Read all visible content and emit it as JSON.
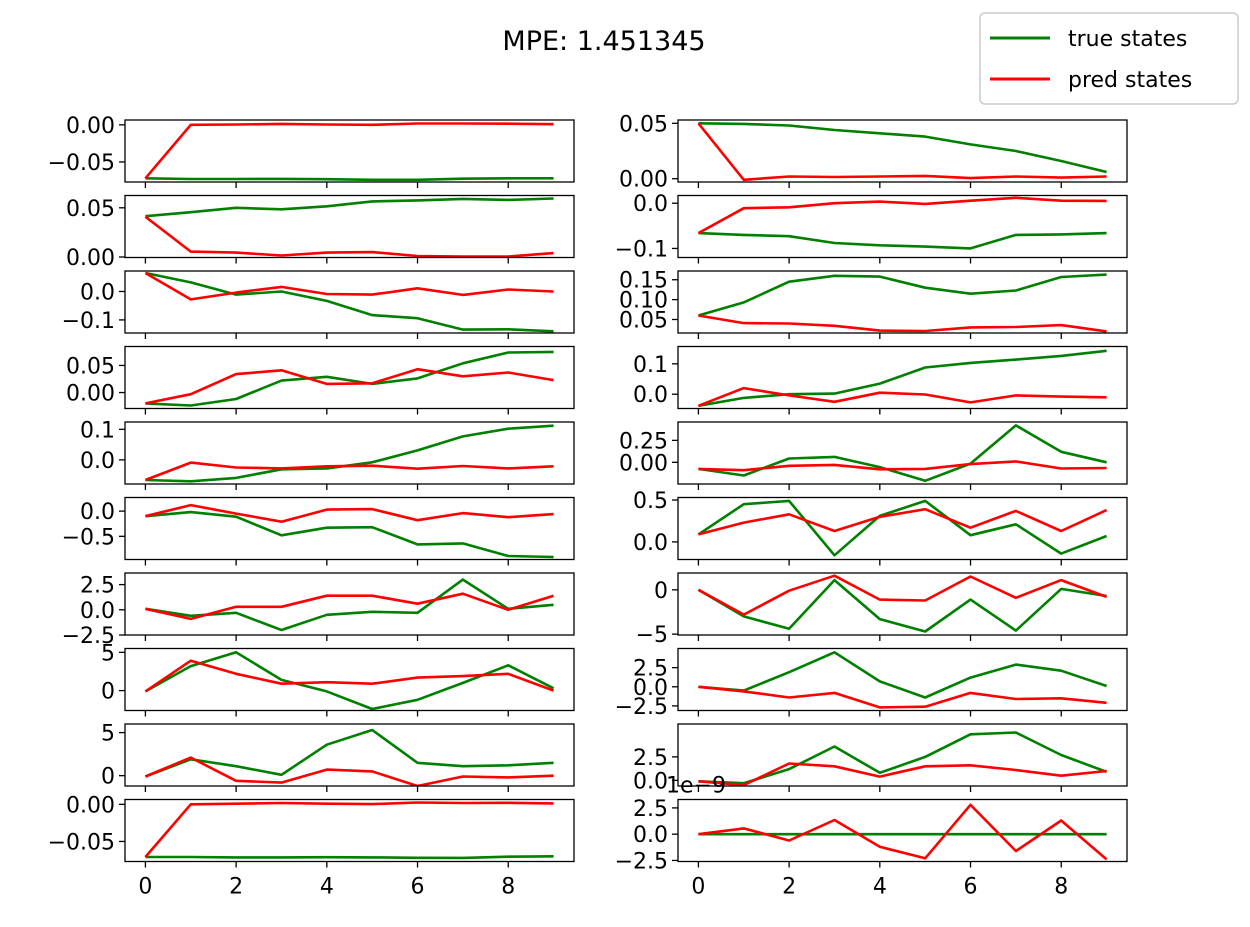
{
  "title": "MPE: 1.451345",
  "legend": {
    "location": "top-right",
    "entries": [
      {
        "label": "true states",
        "color": "#008000"
      },
      {
        "label": "pred states",
        "color": "#ff0000"
      }
    ]
  },
  "chart_data": {
    "type": "line",
    "title": "MPE: 1.451345",
    "layout": "10 rows x 2 columns, shared x axis",
    "x": [
      0,
      1,
      2,
      3,
      4,
      5,
      6,
      7,
      8,
      9
    ],
    "xticks": [
      0,
      2,
      4,
      6,
      8
    ],
    "xlim": [
      -0.45,
      9.45
    ],
    "series_colors": {
      "true states": "#008000",
      "pred states": "#ff0000"
    },
    "subplots": [
      {
        "row": 0,
        "col": 0,
        "ylim": [
          -0.077,
          0.0065
        ],
        "yticks": [
          0.0,
          -0.05
        ],
        "yticklabels": [
          "0.00",
          "−0.05"
        ],
        "series": [
          {
            "name": "true states",
            "values": [
              -0.072,
              -0.073,
              -0.073,
              -0.0728,
              -0.0732,
              -0.074,
              -0.074,
              -0.0725,
              -0.072,
              -0.072
            ]
          },
          {
            "name": "pred states",
            "values": [
              -0.072,
              0.0,
              0.0005,
              0.0012,
              0.0005,
              0.0,
              0.0018,
              0.0018,
              0.0015,
              0.0008
            ]
          }
        ]
      },
      {
        "row": 0,
        "col": 1,
        "ylim": [
          -0.003,
          0.053
        ],
        "yticks": [
          0.05,
          0.0
        ],
        "yticklabels": [
          "0.05",
          "0.00"
        ],
        "series": [
          {
            "name": "true states",
            "values": [
              0.05,
              0.0495,
              0.048,
              0.044,
              0.041,
              0.038,
              0.031,
              0.025,
              0.016,
              0.006
            ]
          },
          {
            "name": "pred states",
            "values": [
              0.05,
              -0.001,
              0.002,
              0.0015,
              0.002,
              0.0025,
              0.0005,
              0.002,
              0.001,
              0.002
            ]
          }
        ]
      },
      {
        "row": 1,
        "col": 0,
        "ylim": [
          -0.0005,
          0.0625
        ],
        "yticks": [
          0.05,
          0.0
        ],
        "yticklabels": [
          "0.05",
          "0.00"
        ],
        "series": [
          {
            "name": "true states",
            "values": [
              0.0415,
              0.0455,
              0.05,
              0.0485,
              0.0515,
              0.0565,
              0.0575,
              0.059,
              0.058,
              0.0595
            ]
          },
          {
            "name": "pred states",
            "values": [
              0.041,
              0.0055,
              0.0045,
              0.0015,
              0.0045,
              0.005,
              0.001,
              0.0005,
              0.0005,
              0.004
            ]
          }
        ]
      },
      {
        "row": 1,
        "col": 1,
        "ylim": [
          -0.12,
          0.017
        ],
        "yticks": [
          0.0,
          -0.1
        ],
        "yticklabels": [
          "0.0",
          "−0.1"
        ],
        "series": [
          {
            "name": "true states",
            "values": [
              -0.066,
              -0.07,
              -0.073,
              -0.088,
              -0.093,
              -0.096,
              -0.1,
              -0.07,
              -0.069,
              -0.066
            ]
          },
          {
            "name": "pred states",
            "values": [
              -0.066,
              -0.011,
              -0.009,
              0.0,
              0.0035,
              -0.0015,
              0.0055,
              0.012,
              0.0055,
              0.005
            ]
          }
        ]
      },
      {
        "row": 2,
        "col": 0,
        "ylim": [
          -0.146,
          0.072
        ],
        "yticks": [
          0.0,
          -0.1
        ],
        "yticklabels": [
          "0.0",
          "−0.1"
        ],
        "series": [
          {
            "name": "true states",
            "values": [
              0.065,
              0.032,
              -0.011,
              0.0,
              -0.033,
              -0.083,
              -0.094,
              -0.134,
              -0.133,
              -0.14
            ]
          },
          {
            "name": "pred states",
            "values": [
              0.065,
              -0.028,
              -0.004,
              0.016,
              -0.009,
              -0.011,
              0.011,
              -0.012,
              0.007,
              0.0
            ]
          }
        ]
      },
      {
        "row": 2,
        "col": 1,
        "ylim": [
          0.016,
          0.172
        ],
        "yticks": [
          0.15,
          0.1,
          0.05
        ],
        "yticklabels": [
          "0.15",
          "0.10",
          "0.05"
        ],
        "series": [
          {
            "name": "true states",
            "values": [
              0.06,
              0.093,
              0.145,
              0.16,
              0.158,
              0.13,
              0.115,
              0.123,
              0.157,
              0.163
            ]
          },
          {
            "name": "pred states",
            "values": [
              0.06,
              0.041,
              0.04,
              0.034,
              0.022,
              0.021,
              0.03,
              0.031,
              0.036,
              0.02
            ]
          }
        ]
      },
      {
        "row": 3,
        "col": 0,
        "ylim": [
          -0.0295,
          0.085
        ],
        "yticks": [
          0.05,
          0.0
        ],
        "yticklabels": [
          "0.05",
          "0.00"
        ],
        "series": [
          {
            "name": "true states",
            "values": [
              -0.02,
              -0.024,
              -0.012,
              0.022,
              0.029,
              0.016,
              0.026,
              0.054,
              0.074,
              0.075
            ]
          },
          {
            "name": "pred states",
            "values": [
              -0.02,
              -0.003,
              0.034,
              0.041,
              0.016,
              0.017,
              0.043,
              0.03,
              0.037,
              0.023
            ]
          }
        ]
      },
      {
        "row": 3,
        "col": 1,
        "ylim": [
          -0.047,
          0.157
        ],
        "yticks": [
          0.1,
          0.0
        ],
        "yticklabels": [
          "0.1",
          "0.0"
        ],
        "series": [
          {
            "name": "true states",
            "values": [
              -0.038,
              -0.012,
              0.0,
              0.002,
              0.035,
              0.088,
              0.103,
              0.114,
              0.126,
              0.143
            ]
          },
          {
            "name": "pred states",
            "values": [
              -0.038,
              0.02,
              -0.004,
              -0.025,
              0.005,
              -0.001,
              -0.027,
              -0.004,
              -0.008,
              -0.01
            ]
          }
        ]
      },
      {
        "row": 4,
        "col": 0,
        "ylim": [
          -0.079,
          0.124
        ],
        "yticks": [
          0.1,
          0.0
        ],
        "yticklabels": [
          "0.1",
          "0.0"
        ],
        "series": [
          {
            "name": "true states",
            "values": [
              -0.066,
              -0.07,
              -0.059,
              -0.031,
              -0.028,
              -0.008,
              0.031,
              0.077,
              0.102,
              0.112
            ]
          },
          {
            "name": "pred states",
            "values": [
              -0.066,
              -0.009,
              -0.025,
              -0.028,
              -0.021,
              -0.019,
              -0.029,
              -0.02,
              -0.028,
              -0.021
            ]
          }
        ]
      },
      {
        "row": 4,
        "col": 1,
        "ylim": [
          -0.247,
          0.459
        ],
        "yticks": [
          0.25,
          0.0
        ],
        "yticklabels": [
          "0.25",
          "0.00"
        ],
        "series": [
          {
            "name": "true states",
            "values": [
              -0.075,
              -0.15,
              0.043,
              0.062,
              -0.055,
              -0.21,
              -0.015,
              0.42,
              0.12,
              0.0
            ]
          },
          {
            "name": "pred states",
            "values": [
              -0.075,
              -0.09,
              -0.04,
              -0.03,
              -0.08,
              -0.075,
              -0.02,
              0.01,
              -0.07,
              -0.065
            ]
          }
        ]
      },
      {
        "row": 5,
        "col": 0,
        "ylim": [
          -0.96,
          0.27
        ],
        "yticks": [
          0.0,
          -0.5
        ],
        "yticklabels": [
          "0.0",
          "−0.5"
        ],
        "series": [
          {
            "name": "true states",
            "values": [
              -0.1,
              -0.02,
              -0.11,
              -0.48,
              -0.33,
              -0.32,
              -0.66,
              -0.64,
              -0.89,
              -0.91
            ]
          },
          {
            "name": "pred states",
            "values": [
              -0.1,
              0.12,
              -0.05,
              -0.21,
              0.03,
              0.04,
              -0.18,
              -0.04,
              -0.12,
              -0.06
            ]
          }
        ]
      },
      {
        "row": 5,
        "col": 1,
        "ylim": [
          -0.21,
          0.53
        ],
        "yticks": [
          0.5,
          0.0
        ],
        "yticklabels": [
          "0.5",
          "0.0"
        ],
        "series": [
          {
            "name": "true states",
            "values": [
              0.09,
              0.45,
              0.49,
              -0.16,
              0.31,
              0.49,
              0.08,
              0.21,
              -0.14,
              0.07
            ]
          },
          {
            "name": "pred states",
            "values": [
              0.09,
              0.23,
              0.33,
              0.13,
              0.3,
              0.39,
              0.17,
              0.37,
              0.13,
              0.38
            ]
          }
        ]
      },
      {
        "row": 6,
        "col": 0,
        "ylim": [
          -2.5,
          3.65
        ],
        "yticks": [
          2.5,
          0.0,
          -2.5
        ],
        "yticklabels": [
          "2.5",
          "0.0",
          "−2.5"
        ],
        "series": [
          {
            "name": "true states",
            "values": [
              0.1,
              -0.6,
              -0.3,
              -2.0,
              -0.5,
              -0.2,
              -0.3,
              3.0,
              0.1,
              0.5
            ]
          },
          {
            "name": "pred states",
            "values": [
              0.1,
              -0.9,
              0.3,
              0.3,
              1.4,
              1.4,
              0.6,
              1.6,
              0.0,
              1.4
            ]
          }
        ]
      },
      {
        "row": 6,
        "col": 1,
        "ylim": [
          -5.1,
          1.9
        ],
        "yticks": [
          0,
          -5
        ],
        "yticklabels": [
          "0",
          "−5"
        ],
        "series": [
          {
            "name": "true states",
            "values": [
              0.0,
              -3.0,
              -4.4,
              1.1,
              -3.3,
              -4.7,
              -1.1,
              -4.6,
              0.1,
              -0.7
            ]
          },
          {
            "name": "pred states",
            "values": [
              0.0,
              -2.8,
              -0.1,
              1.6,
              -1.1,
              -1.2,
              1.5,
              -0.9,
              1.1,
              -0.8
            ]
          }
        ]
      },
      {
        "row": 7,
        "col": 0,
        "ylim": [
          -2.6,
          5.5
        ],
        "yticks": [
          5,
          0
        ],
        "yticklabels": [
          "5",
          "0"
        ],
        "series": [
          {
            "name": "true states",
            "values": [
              -0.1,
              3.2,
              5.0,
              1.4,
              -0.1,
              -2.4,
              -1.2,
              1.0,
              3.3,
              0.3
            ]
          },
          {
            "name": "pred states",
            "values": [
              -0.1,
              3.9,
              2.2,
              0.9,
              1.1,
              0.9,
              1.7,
              1.9,
              2.2,
              0.0
            ]
          }
        ]
      },
      {
        "row": 7,
        "col": 1,
        "ylim": [
          -3.1,
          5.0
        ],
        "yticks": [
          2.5,
          0.0,
          -2.5
        ],
        "yticklabels": [
          "2.5",
          "0.0",
          "−2.5"
        ],
        "series": [
          {
            "name": "true states",
            "values": [
              0.0,
              -0.5,
              1.9,
              4.5,
              0.7,
              -1.4,
              1.2,
              2.9,
              2.1,
              0.1
            ]
          },
          {
            "name": "pred states",
            "values": [
              0.0,
              -0.6,
              -1.4,
              -0.8,
              -2.7,
              -2.6,
              -0.8,
              -1.6,
              -1.5,
              -2.1
            ]
          }
        ]
      },
      {
        "row": 8,
        "col": 0,
        "ylim": [
          -1.2,
          6.0
        ],
        "yticks": [
          5,
          0
        ],
        "yticklabels": [
          "5",
          "0"
        ],
        "series": [
          {
            "name": "true states",
            "values": [
              -0.1,
              1.9,
              1.1,
              0.1,
              3.6,
              5.3,
              1.5,
              1.1,
              1.2,
              1.5
            ]
          },
          {
            "name": "pred states",
            "values": [
              -0.1,
              2.1,
              -0.6,
              -0.8,
              0.7,
              0.5,
              -1.2,
              -0.1,
              -0.2,
              0.0
            ]
          }
        ]
      },
      {
        "row": 8,
        "col": 1,
        "ylim": [
          -0.6,
          6.0
        ],
        "yticks": [
          2.5,
          0.0
        ],
        "yticklabels": [
          "2.5",
          "0.0"
        ],
        "series": [
          {
            "name": "true states",
            "values": [
              -0.1,
              -0.3,
              1.2,
              3.6,
              0.8,
              2.5,
              4.9,
              5.1,
              2.7,
              0.9
            ]
          },
          {
            "name": "pred states",
            "values": [
              -0.1,
              -0.5,
              1.8,
              1.5,
              0.4,
              1.5,
              1.6,
              1.1,
              0.5,
              1.0
            ]
          }
        ]
      },
      {
        "row": 9,
        "col": 0,
        "ylim": [
          -0.077,
          0.0065
        ],
        "yticks": [
          0.0,
          -0.05
        ],
        "yticklabels": [
          "0.00",
          "−0.05"
        ],
        "series": [
          {
            "name": "true states",
            "values": [
              -0.071,
              -0.071,
              -0.0715,
              -0.0715,
              -0.0712,
              -0.0715,
              -0.072,
              -0.0722,
              -0.0705,
              -0.07
            ]
          },
          {
            "name": "pred states",
            "values": [
              -0.071,
              0.0,
              0.0008,
              0.0018,
              0.0008,
              0.0003,
              0.0025,
              0.0018,
              0.002,
              0.0012
            ]
          }
        ]
      },
      {
        "row": 9,
        "col": 1,
        "ylim": [
          -2.6,
          3.3
        ],
        "yticks": [
          2.5,
          0.0,
          -2.5
        ],
        "yticklabels": [
          "2.5",
          "0.0",
          "−2.5"
        ],
        "offset_text": "1e−9",
        "series": [
          {
            "name": "true states",
            "values": [
              0,
              0,
              0,
              0,
              0,
              0,
              0,
              0,
              0,
              0
            ]
          },
          {
            "name": "pred states",
            "values": [
              0.0,
              0.55,
              -0.6,
              1.35,
              -1.2,
              -2.3,
              2.8,
              -1.6,
              1.3,
              -2.4
            ]
          }
        ]
      }
    ]
  }
}
